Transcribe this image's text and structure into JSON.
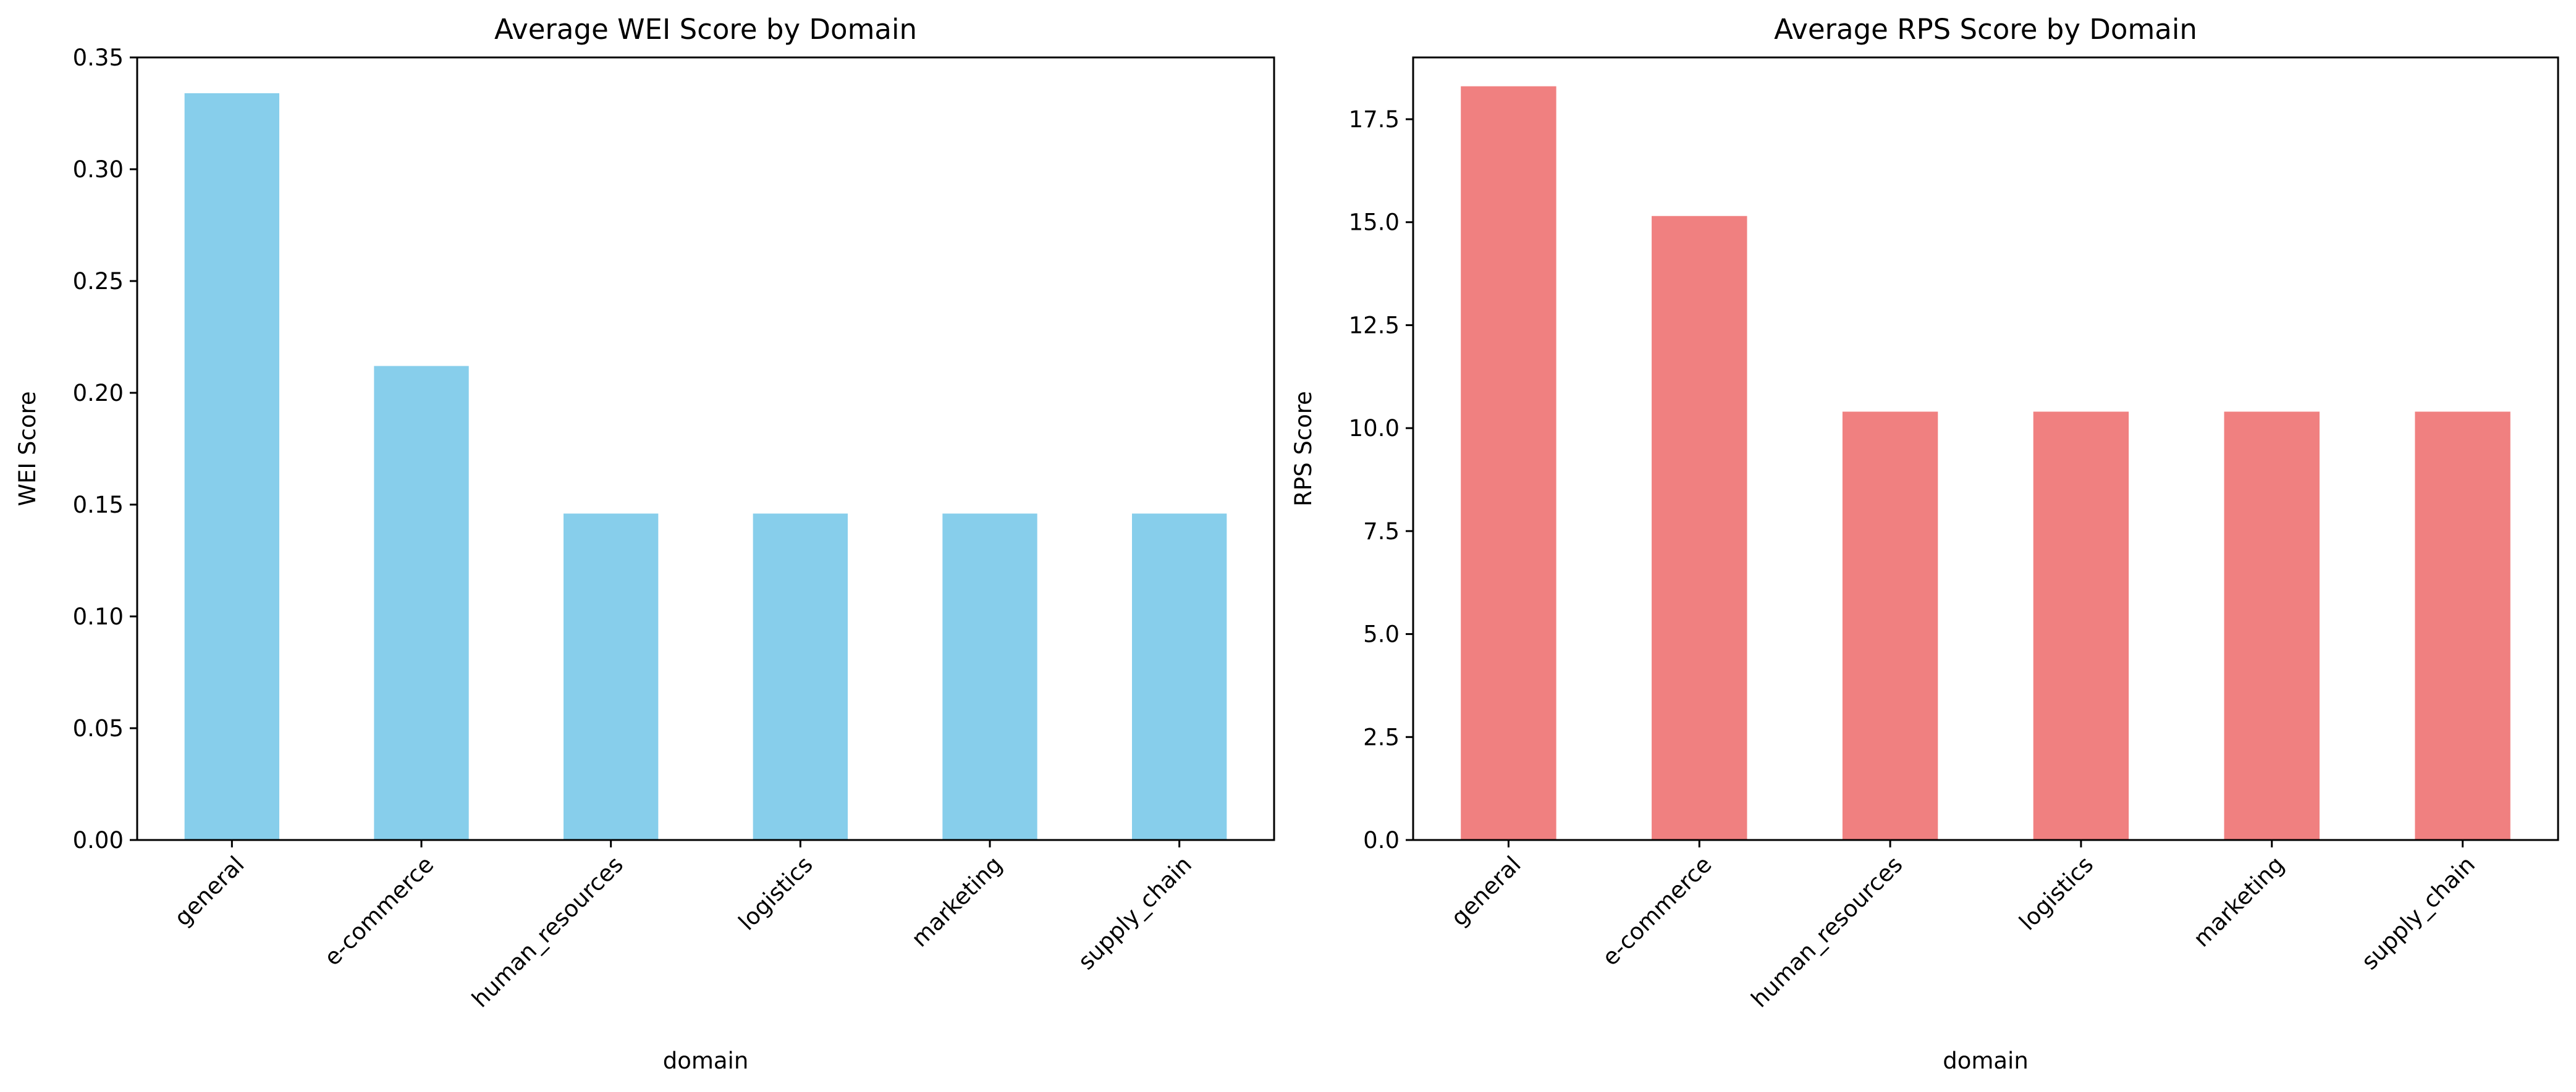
{
  "chart_data": [
    {
      "type": "bar",
      "title": "Average WEI Score by Domain",
      "xlabel": "domain",
      "ylabel": "WEI Score",
      "categories": [
        "general",
        "e-commerce",
        "human_resources",
        "logistics",
        "marketing",
        "supply_chain"
      ],
      "values": [
        0.334,
        0.212,
        0.146,
        0.146,
        0.146,
        0.146
      ],
      "ylim": [
        0,
        0.35
      ],
      "yticks": [
        "0.00",
        "0.05",
        "0.10",
        "0.15",
        "0.20",
        "0.25",
        "0.30",
        "0.35"
      ],
      "color": "#87CEEB",
      "grid": false,
      "legend": false
    },
    {
      "type": "bar",
      "title": "Average RPS Score by Domain",
      "xlabel": "domain",
      "ylabel": "RPS Score",
      "categories": [
        "general",
        "e-commerce",
        "human_resources",
        "logistics",
        "marketing",
        "supply_chain"
      ],
      "values": [
        18.3,
        15.15,
        10.4,
        10.4,
        10.4,
        10.4
      ],
      "ylim": [
        0,
        19.0
      ],
      "yticks": [
        "0.0",
        "2.5",
        "5.0",
        "7.5",
        "10.0",
        "12.5",
        "15.0",
        "17.5"
      ],
      "color": "#F08080",
      "grid": false,
      "legend": false
    }
  ]
}
